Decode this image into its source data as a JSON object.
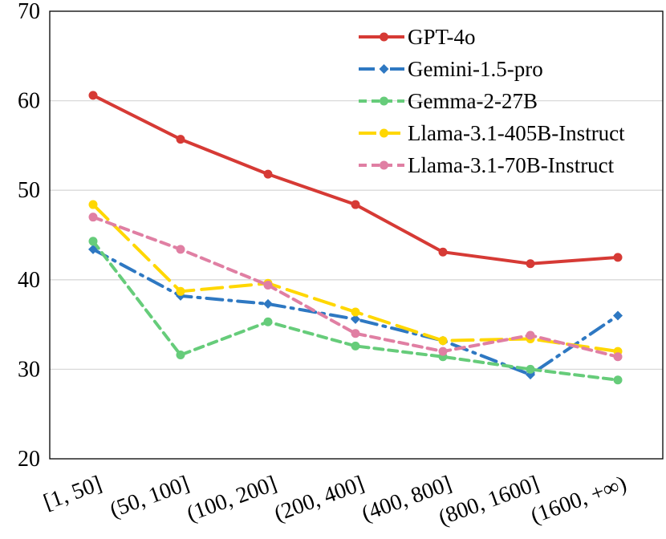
{
  "chart_data": {
    "type": "line",
    "title": "",
    "xlabel": "",
    "ylabel": "",
    "ylim": [
      20,
      70
    ],
    "yticks": [
      "20",
      "30",
      "40",
      "50",
      "60",
      "70"
    ],
    "categories": [
      "[1, 50]",
      "(50, 100]",
      "(100, 200]",
      "(200, 400]",
      "(400, 800]",
      "(800, 1600]",
      "(1600, +∞)"
    ],
    "grid": true,
    "legend_position": "top-right",
    "series": [
      {
        "name": "GPT-4o",
        "color": "#d63a35",
        "dash": "solid",
        "marker": "circle",
        "values": [
          60.6,
          55.7,
          51.8,
          48.4,
          43.1,
          41.8,
          42.5
        ]
      },
      {
        "name": "Gemini-1.5-pro",
        "color": "#2e78c2",
        "dash": "dashdot",
        "marker": "diamond",
        "values": [
          43.4,
          38.2,
          37.3,
          35.6,
          33.2,
          29.4,
          36.0
        ]
      },
      {
        "name": "Gemma-2-27B",
        "color": "#66cc7a",
        "dash": "dash",
        "marker": "circle",
        "values": [
          44.3,
          31.6,
          35.3,
          32.6,
          31.4,
          30.0,
          28.8
        ]
      },
      {
        "name": "Llama-3.1-405B-Instruct",
        "color": "#ffd700",
        "dash": "longdash",
        "marker": "circle",
        "values": [
          48.4,
          38.7,
          39.6,
          36.4,
          33.2,
          33.4,
          32.0
        ]
      },
      {
        "name": "Llama-3.1-70B-Instruct",
        "color": "#e07fa3",
        "dash": "dash",
        "marker": "circle",
        "values": [
          47.0,
          43.4,
          39.4,
          34.0,
          32.0,
          33.8,
          31.4
        ]
      }
    ]
  }
}
